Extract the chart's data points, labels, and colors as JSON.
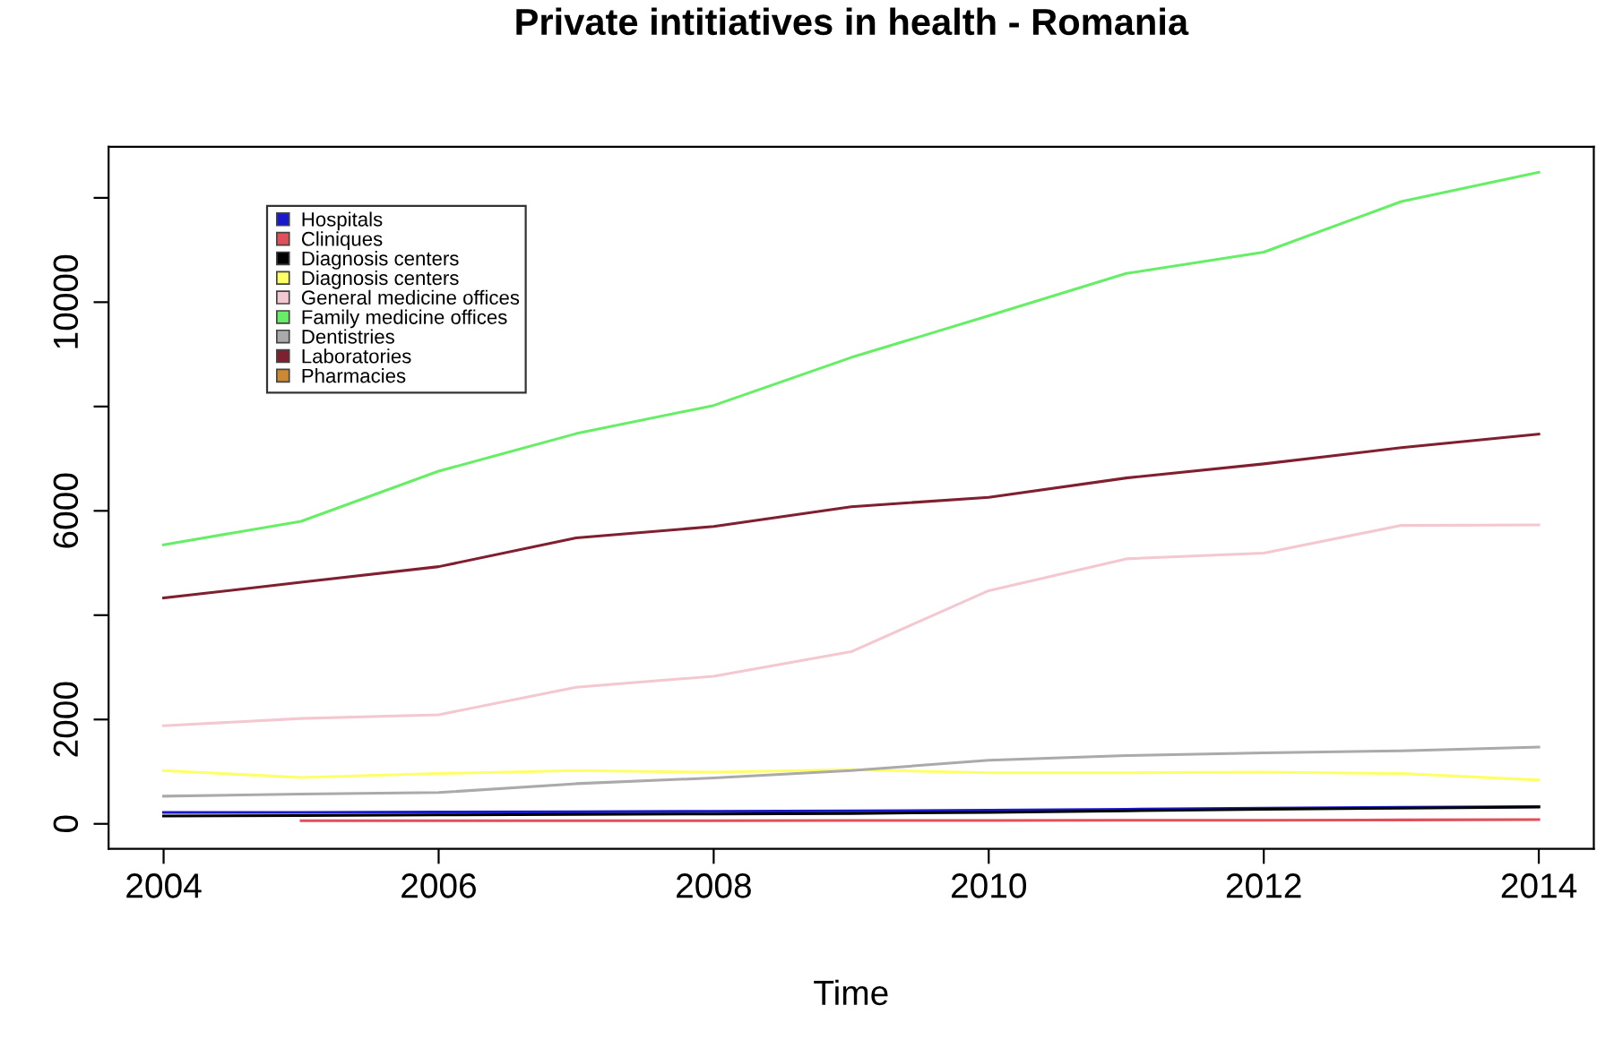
{
  "chart_data": {
    "type": "line",
    "title": "Private intitiatives in health - Romania",
    "xlabel": "Time",
    "x": [
      2004,
      2005,
      2006,
      2007,
      2008,
      2009,
      2010,
      2011,
      2012,
      2013,
      2014
    ],
    "series": [
      {
        "name": "Hospitals",
        "color": "#1a1acc",
        "values": [
          220,
          220,
          225,
          230,
          240,
          250,
          260,
          280,
          300,
          315,
          330
        ]
      },
      {
        "name": "Cliniques",
        "color": "#e0505a",
        "values": [
          null,
          60,
          60,
          60,
          60,
          65,
          65,
          70,
          70,
          75,
          80
        ]
      },
      {
        "name": "Diagnosis centers",
        "color": "#000000",
        "values": [
          150,
          160,
          170,
          180,
          190,
          200,
          220,
          250,
          280,
          300,
          320
        ]
      },
      {
        "name": "Diagnosis centers",
        "color": "#ffff66",
        "values": [
          1020,
          890,
          965,
          1020,
          990,
          1040,
          980,
          980,
          990,
          965,
          840
        ]
      },
      {
        "name": "General medicine offices",
        "color": "#f4c8d0",
        "values": [
          1880,
          2020,
          2090,
          2620,
          2830,
          3300,
          4470,
          5080,
          5190,
          5720,
          5730
        ]
      },
      {
        "name": "Family medicine offices",
        "color": "#66ee66",
        "values": [
          5350,
          5800,
          6760,
          7480,
          8020,
          8940,
          9740,
          10550,
          10960,
          11930,
          12490
        ]
      },
      {
        "name": "Dentistries",
        "color": "#aaaaaa",
        "values": [
          530,
          570,
          600,
          770,
          880,
          1020,
          1220,
          1310,
          1360,
          1400,
          1470
        ]
      },
      {
        "name": "Laboratories",
        "color": "#7f1f2f",
        "values": [
          4330,
          4630,
          4930,
          5480,
          5700,
          6080,
          6260,
          6630,
          6900,
          7210,
          7470
        ]
      },
      {
        "name": "Pharmacies",
        "color": "#cc8833",
        "values": [
          null,
          null,
          null,
          null,
          null,
          null,
          null,
          null,
          null,
          null,
          null
        ]
      }
    ],
    "xlim": [
      2003.6,
      2014.4
    ],
    "xticks": [
      2004,
      2006,
      2008,
      2010,
      2012,
      2014
    ],
    "ylim": [
      -480,
      12980
    ],
    "yticks": [
      0,
      2000,
      {
        "value": 4000,
        "label": null
      },
      6000,
      {
        "value": 8000,
        "label": null
      },
      10000,
      {
        "value": 12000,
        "label": null
      }
    ],
    "legend": "top left",
    "grid": false,
    "marker": "none",
    "line_style": "solid"
  }
}
